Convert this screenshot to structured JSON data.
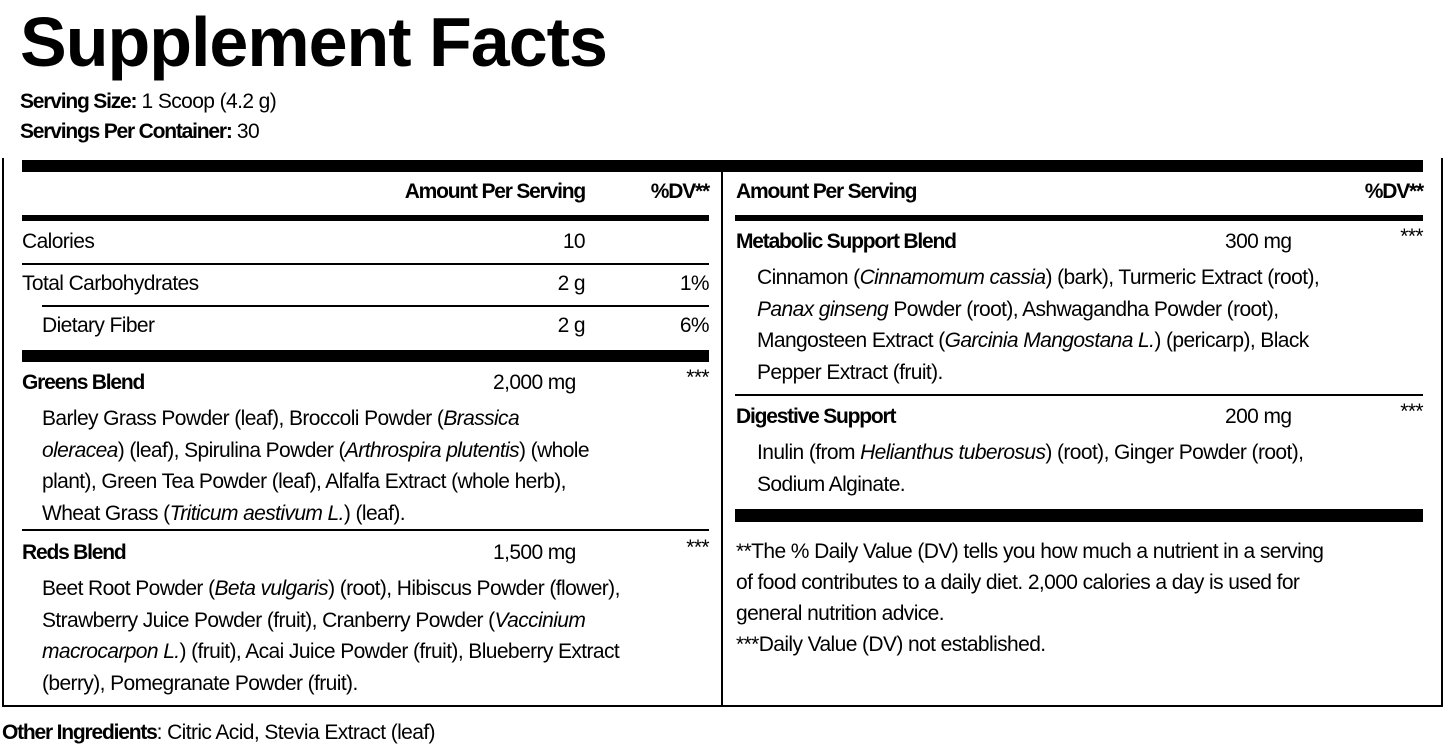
{
  "title": "Supplement Facts",
  "serving_size": {
    "label": "Serving Size:",
    "value": "1 Scoop (4.2 g)"
  },
  "servings_per_container": {
    "label": "Servings Per Container:",
    "value": "30"
  },
  "left": {
    "header_amount": "Amount Per Serving",
    "header_dv": "%DV**",
    "rows": [
      {
        "name": "Calories",
        "amount": "10",
        "dv": ""
      },
      {
        "name": "Total Carbohydrates",
        "amount": "2 g",
        "dv": "1%"
      },
      {
        "name": "Dietary Fiber",
        "amount": "2 g",
        "dv": "6%"
      }
    ],
    "blends": [
      {
        "name": "Greens Blend",
        "amount": "2,000 mg",
        "dv": "***",
        "lines": [
          [
            {
              "t": "Barley Grass Powder (leaf), Broccoli Powder ("
            },
            {
              "t": "Brassica",
              "i": true
            }
          ],
          [
            {
              "t": "oleracea",
              "i": true
            },
            {
              "t": ") (leaf), Spirulina Powder ("
            },
            {
              "t": "Arthrospira plutentis",
              "i": true
            },
            {
              "t": ") (whole"
            }
          ],
          [
            {
              "t": "plant), Green Tea Powder (leaf), Alfalfa Extract (whole herb),"
            }
          ],
          [
            {
              "t": "Wheat Grass ("
            },
            {
              "t": "Triticum aestivum L.",
              "i": true
            },
            {
              "t": ") (leaf)."
            }
          ]
        ]
      },
      {
        "name": "Reds Blend",
        "amount": "1,500 mg",
        "dv": "***",
        "lines": [
          [
            {
              "t": "Beet Root Powder ("
            },
            {
              "t": "Beta vulgaris",
              "i": true
            },
            {
              "t": ") (root), Hibiscus Powder (flower),"
            }
          ],
          [
            {
              "t": "Strawberry Juice Powder (fruit), Cranberry Powder ("
            },
            {
              "t": "Vaccinium",
              "i": true
            }
          ],
          [
            {
              "t": "macrocarpon L.",
              "i": true
            },
            {
              "t": ") (fruit), Acai Juice Powder (fruit), Blueberry Extract"
            }
          ],
          [
            {
              "t": "(berry), Pomegranate Powder (fruit)."
            }
          ]
        ]
      }
    ]
  },
  "right": {
    "header_amount": "Amount Per Serving",
    "header_dv": "%DV**",
    "blends": [
      {
        "name": "Metabolic Support Blend",
        "amount": "300 mg",
        "dv": "***",
        "lines": [
          [
            {
              "t": "Cinnamon ("
            },
            {
              "t": "Cinnamomum cassia",
              "i": true
            },
            {
              "t": ") (bark), Turmeric Extract (root),"
            }
          ],
          [
            {
              "t": "Panax ginseng",
              "i": true
            },
            {
              "t": " Powder (root), Ashwagandha Powder (root),"
            }
          ],
          [
            {
              "t": "Mangosteen Extract ("
            },
            {
              "t": "Garcinia Mangostana L.",
              "i": true
            },
            {
              "t": ") (pericarp), Black"
            }
          ],
          [
            {
              "t": "Pepper Extract (fruit)."
            }
          ]
        ]
      },
      {
        "name": "Digestive Support",
        "amount": "200 mg",
        "dv": "***",
        "lines": [
          [
            {
              "t": "Inulin (from "
            },
            {
              "t": "Helianthus tuberosus",
              "i": true
            },
            {
              "t": ") (root), Ginger Powder (root),"
            }
          ],
          [
            {
              "t": "Sodium Alginate."
            }
          ]
        ]
      }
    ],
    "footnotes": [
      "**The % Daily Value (DV) tells you how much a nutrient in a serving",
      "of food contributes to a daily diet. 2,000 calories a day is used for",
      "general nutrition advice.",
      "***Daily Value (DV) not established."
    ]
  },
  "other_ingredients": {
    "label": "Other Ingredients",
    "value": ": Citric Acid, Stevia Extract (leaf)"
  }
}
